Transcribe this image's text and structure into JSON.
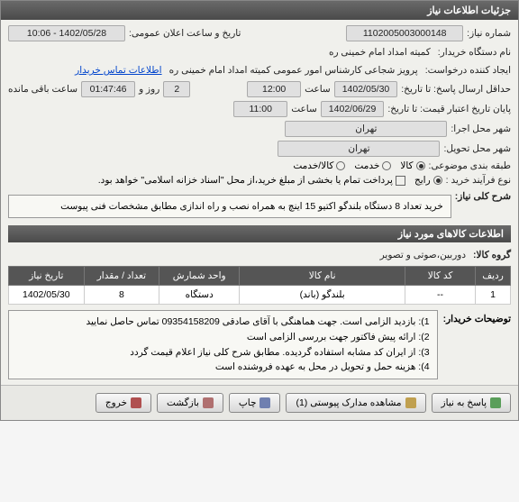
{
  "panel_title": "جزئیات اطلاعات نیاز",
  "fields": {
    "niaz_number_label": "شماره نیاز:",
    "niaz_number": "1102005003000148",
    "public_announce_label": "تاریخ و ساعت اعلان عمومی:",
    "public_announce": "1402/05/28 - 10:06",
    "buyer_device_label": "نام دستگاه خریدار:",
    "buyer_device": "کمیته امداد امام خمینی ره",
    "requester_label": "ایجاد کننده درخواست:",
    "requester": "پرویز شجاعی کارشناس امور عمومی کمیته امداد امام خمینی ره",
    "contact_link": "اطلاعات تماس خریدار",
    "deadline_label": "حداقل ارسال پاسخ: تا تاریخ:",
    "deadline_date": "1402/05/30",
    "saat_label": "ساعت",
    "deadline_time": "12:00",
    "rooz_va_label": "روز و",
    "days_remaining": "2",
    "remaining_time": "01:47:46",
    "remaining_label": "ساعت باقی مانده",
    "validity_label": "پایان تاریخ اعتبار قیمت: تا تاریخ:",
    "validity_date": "1402/06/29",
    "validity_time": "11:00",
    "city_service_label": "شهر محل اجرا:",
    "city_service": "تهران",
    "city_delivery_label": "شهر محل تحویل:",
    "city_delivery": "تهران",
    "budget_label": "طبقه بندی موضوعی:",
    "radio_kala": "کالا",
    "radio_khadmat": "خدمت",
    "radio_kalakhadmat": "کالا/خدمت",
    "process_label": "نوع فرآیند خرید :",
    "radio_rayej": "رایج",
    "radio_other": "پرداخت تمام یا بخشی از مبلغ خرید،از محل \"اسناد خزانه اسلامی\" خواهد بود.",
    "desc_label": "شرح کلی نیاز:",
    "desc_text": "خرید تعداد 8 دستگاه بلندگو اکتیو 15 اینچ به همراه نصب و راه اندازی مطابق مشخصات فنی پیوست",
    "items_header": "اطلاعات کالاهای مورد نیاز",
    "group_label": "گروه کالا:",
    "group_value": "دوربین،صوتی و تصویر"
  },
  "table": {
    "columns": [
      "ردیف",
      "کد کالا",
      "نام کالا",
      "واحد شمارش",
      "تعداد / مقدار",
      "تاریخ نیاز"
    ],
    "rows": [
      [
        "1",
        "--",
        "بلندگو (باند)",
        "دستگاه",
        "8",
        "1402/05/30"
      ]
    ],
    "col_widths": [
      "7%",
      "14%",
      "33%",
      "16%",
      "15%",
      "15%"
    ]
  },
  "notes": {
    "label": "توضیحات خریدار:",
    "lines": [
      "1): بازدید الزامی است. جهت هماهنگی با آقای صادقی 09354158209 تماس حاصل نمایید",
      "2): ارائه پیش فاکتور جهت بررسی الزامی است",
      "3): از ایران کد مشابه استفاده گردیده. مطابق شرح کلی نیاز اعلام قیمت گردد",
      "4): هزینه حمل و تحویل در محل به عهده فروشنده است"
    ]
  },
  "buttons": {
    "reply": "پاسخ به نیاز",
    "attachments": "مشاهده مدارک پیوستی (1)",
    "print": "چاپ",
    "back": "بازگشت",
    "exit": "خروج"
  },
  "colors": {
    "header_bg": "#555555",
    "panel_bg": "#f0f0ec",
    "value_bg": "#e0e0e0",
    "link": "#0044cc"
  }
}
